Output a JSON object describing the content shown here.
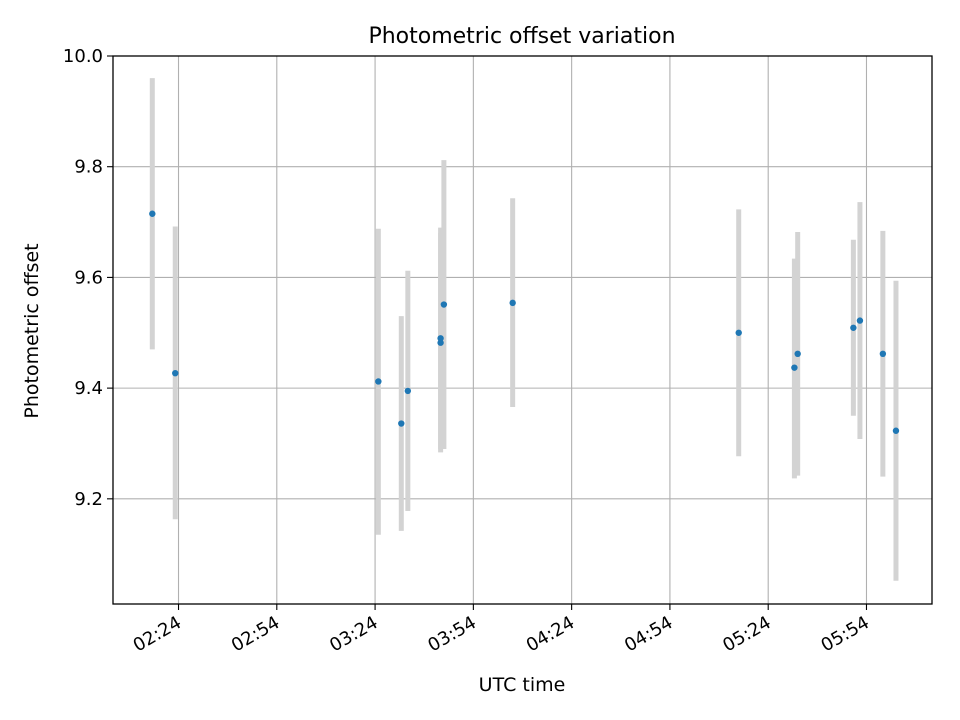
{
  "chart_data": {
    "type": "scatter",
    "title": "Photometric offset variation",
    "xlabel": "UTC time",
    "ylabel": "Photometric offset",
    "xlim": [
      "02:04",
      "06:14"
    ],
    "ylim": [
      9.01,
      10.0
    ],
    "x_ticks": [
      "02:24",
      "02:54",
      "03:24",
      "03:54",
      "04:24",
      "04:54",
      "05:24",
      "05:54"
    ],
    "y_ticks": [
      9.2,
      9.4,
      9.6,
      9.8,
      10.0
    ],
    "y_tick_labels": [
      "9.2",
      "9.4",
      "9.6",
      "9.8",
      "10.0"
    ],
    "grid": true,
    "x_tick_rotation": "30 degrees",
    "colors": {
      "points": "#1f77b4",
      "error_bars": "#d3d3d3",
      "grid": "#b0b0b0"
    },
    "points": [
      {
        "x": "02:16",
        "y": 9.715,
        "y_low": 9.47,
        "y_high": 9.96
      },
      {
        "x": "02:23",
        "y": 9.427,
        "y_low": 9.163,
        "y_high": 9.692
      },
      {
        "x": "03:25",
        "y": 9.412,
        "y_low": 9.135,
        "y_high": 9.688
      },
      {
        "x": "03:32",
        "y": 9.336,
        "y_low": 9.142,
        "y_high": 9.53
      },
      {
        "x": "03:34",
        "y": 9.395,
        "y_low": 9.178,
        "y_high": 9.612
      },
      {
        "x": "03:44",
        "y": 9.482,
        "y_low": 9.284,
        "y_high": 9.68
      },
      {
        "x": "03:44",
        "y": 9.49,
        "y_low": 9.29,
        "y_high": 9.69
      },
      {
        "x": "03:45",
        "y": 9.551,
        "y_low": 9.29,
        "y_high": 9.812
      },
      {
        "x": "04:06",
        "y": 9.554,
        "y_low": 9.366,
        "y_high": 9.743
      },
      {
        "x": "05:15",
        "y": 9.5,
        "y_low": 9.277,
        "y_high": 9.723
      },
      {
        "x": "05:32",
        "y": 9.437,
        "y_low": 9.237,
        "y_high": 9.634
      },
      {
        "x": "05:33",
        "y": 9.462,
        "y_low": 9.242,
        "y_high": 9.682
      },
      {
        "x": "05:50",
        "y": 9.509,
        "y_low": 9.35,
        "y_high": 9.668
      },
      {
        "x": "05:52",
        "y": 9.522,
        "y_low": 9.308,
        "y_high": 9.736
      },
      {
        "x": "05:59",
        "y": 9.462,
        "y_low": 9.24,
        "y_high": 9.684
      },
      {
        "x": "06:03",
        "y": 9.323,
        "y_low": 9.052,
        "y_high": 9.594
      }
    ]
  }
}
